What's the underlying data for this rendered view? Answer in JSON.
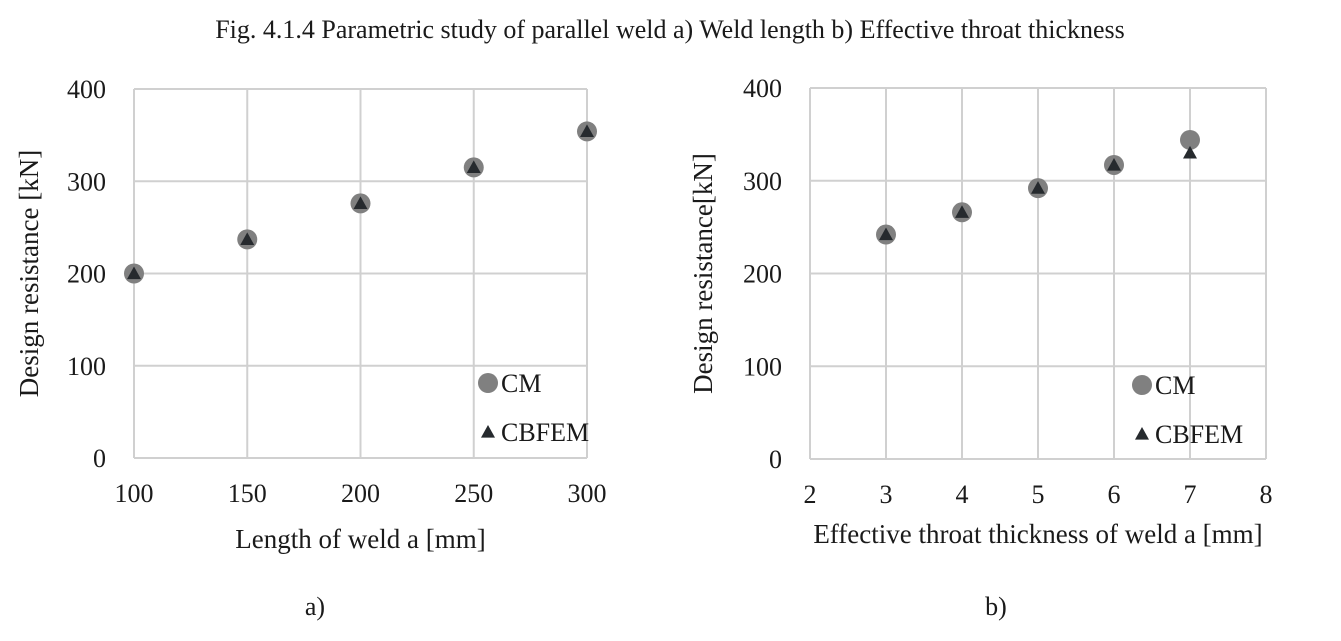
{
  "figure_title": "Fig. 4.1.4 Parametric study of parallel weld a) Weld length b) Effective throat thickness",
  "chart_data": [
    {
      "type": "scatter",
      "panel_label": "a)",
      "xlabel": "Length of weld a [mm]",
      "ylabel": "Design resistance [kN]",
      "xlim": [
        100,
        300
      ],
      "ylim": [
        0,
        400
      ],
      "xticks": [
        100,
        150,
        200,
        250,
        300
      ],
      "yticks": [
        0,
        100,
        200,
        300,
        400
      ],
      "grid": true,
      "legend_position": "bottom-right",
      "series": [
        {
          "name": "CM",
          "marker": "circle",
          "color": "#808080",
          "x": [
            100,
            150,
            200,
            250,
            300
          ],
          "y": [
            200,
            237,
            276,
            315,
            354
          ]
        },
        {
          "name": "CBFEM",
          "marker": "triangle",
          "color": "#262a2e",
          "x": [
            100,
            150,
            200,
            250,
            300
          ],
          "y": [
            200,
            237,
            276,
            315,
            354
          ]
        }
      ]
    },
    {
      "type": "scatter",
      "panel_label": "b)",
      "xlabel": "Effective throat thickness of weld a [mm]",
      "ylabel": "Design resistance[kN]",
      "xlim": [
        2,
        8
      ],
      "ylim": [
        0,
        400
      ],
      "xticks": [
        2,
        3,
        4,
        5,
        6,
        7,
        8
      ],
      "yticks": [
        0,
        100,
        200,
        300,
        400
      ],
      "grid": true,
      "legend_position": "bottom-right",
      "series": [
        {
          "name": "CM",
          "marker": "circle",
          "color": "#808080",
          "x": [
            3,
            4,
            5,
            6,
            7
          ],
          "y": [
            242,
            266,
            292,
            317,
            344
          ]
        },
        {
          "name": "CBFEM",
          "marker": "triangle",
          "color": "#262a2e",
          "x": [
            3,
            4,
            5,
            6,
            7
          ],
          "y": [
            242,
            266,
            292,
            317,
            330
          ]
        }
      ]
    }
  ]
}
